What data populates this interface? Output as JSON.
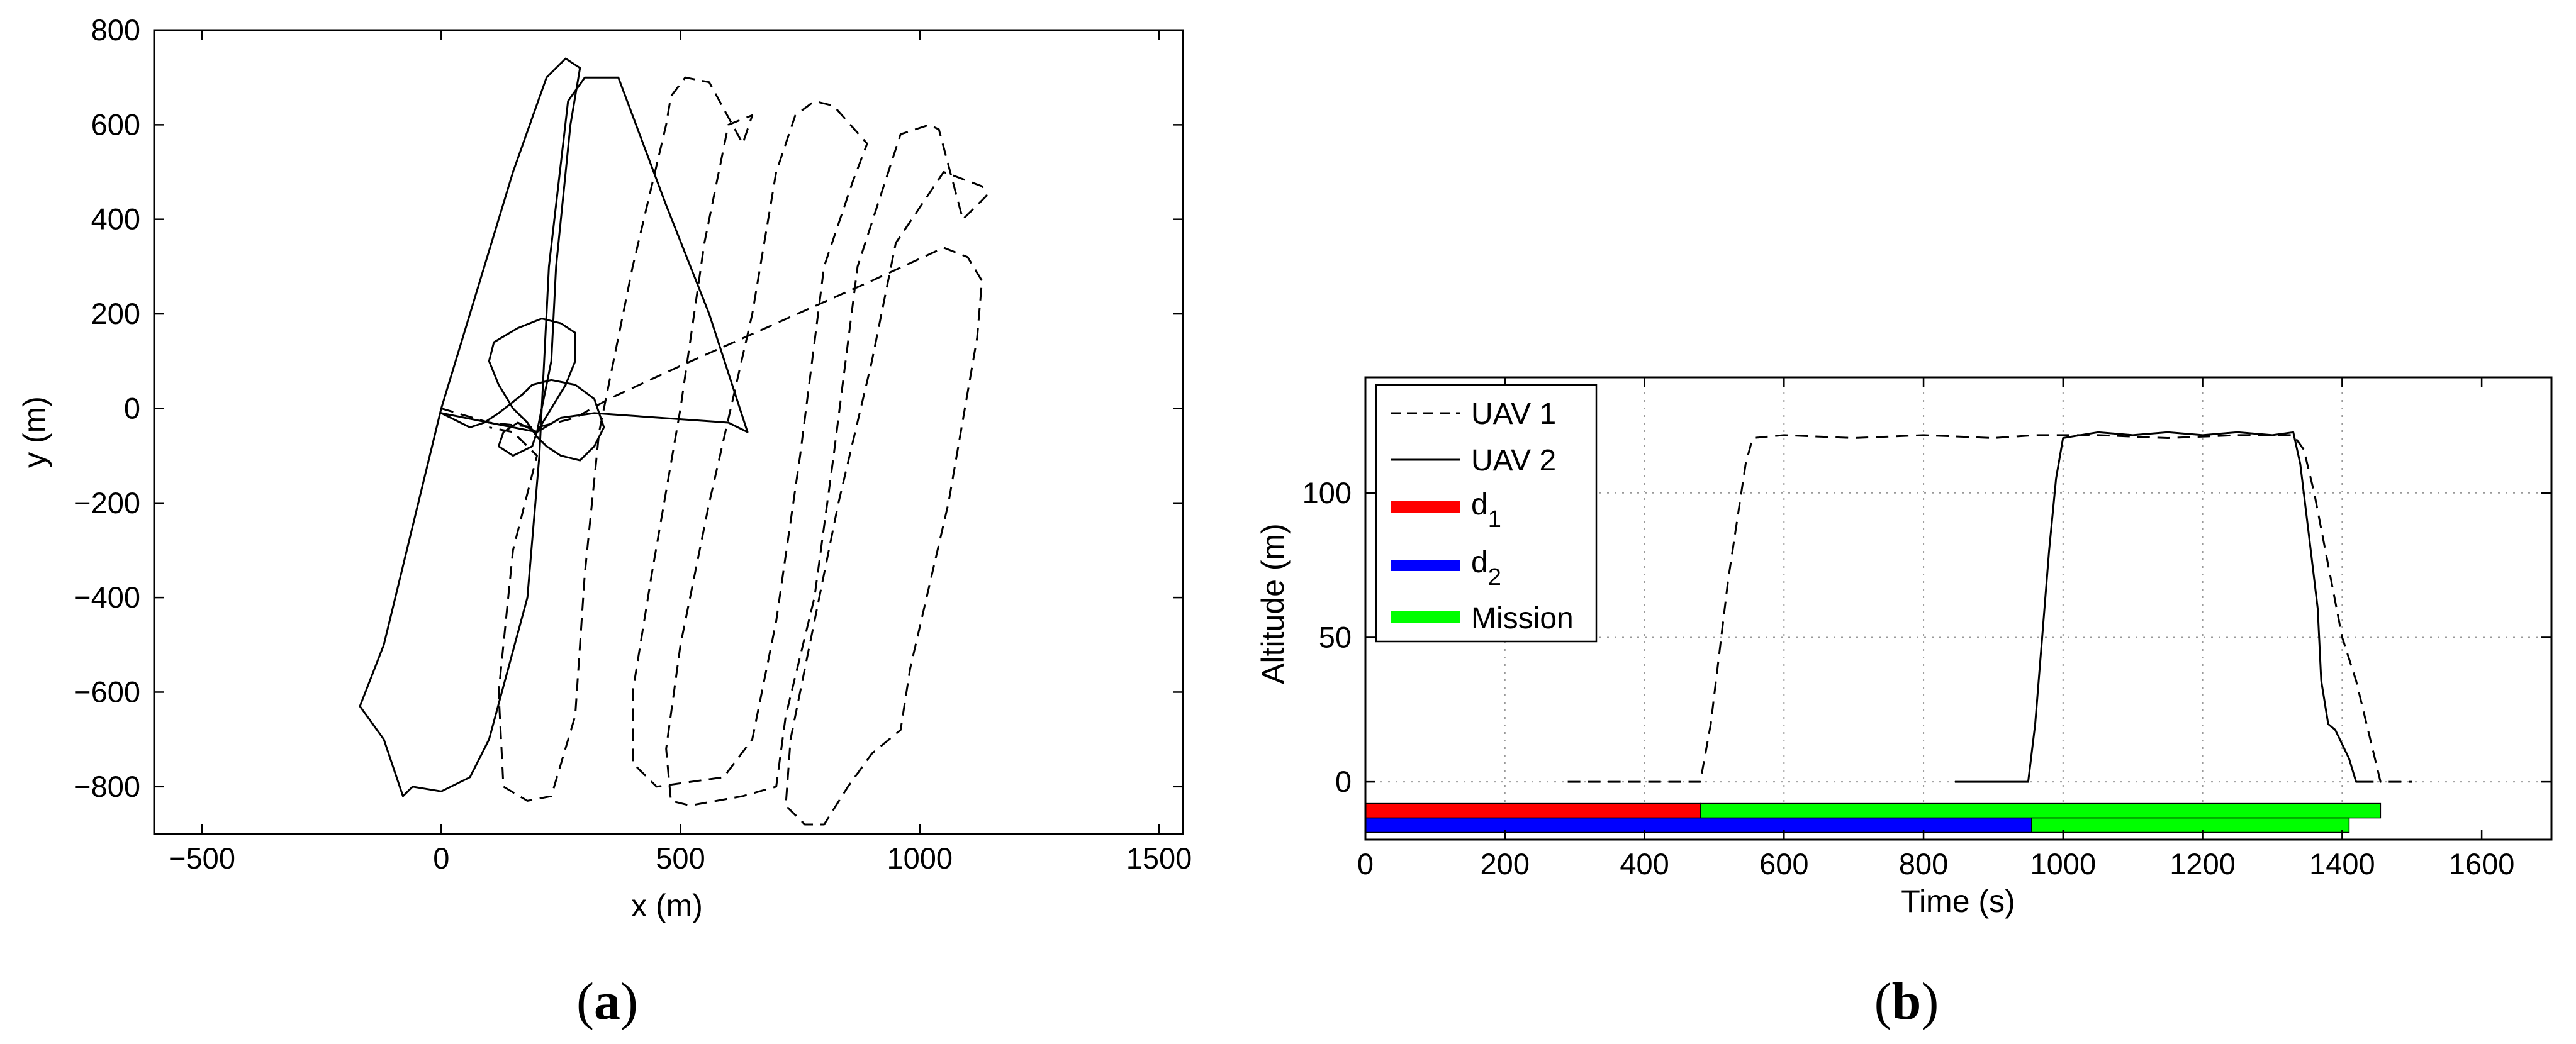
{
  "panels": [
    {
      "label_open": "(",
      "label_letter": "a",
      "label_close": ")"
    },
    {
      "label_open": "(",
      "label_letter": "b",
      "label_close": ")"
    }
  ],
  "chart_data": [
    {
      "type": "line",
      "xlabel": "x (m)",
      "ylabel": "y (m)",
      "xlim": [
        -600,
        1550
      ],
      "ylim": [
        -900,
        800
      ],
      "xticks": [
        -500,
        0,
        500,
        1000,
        1500
      ],
      "yticks": [
        -800,
        -600,
        -400,
        -200,
        0,
        200,
        400,
        600,
        800
      ],
      "xtick_labels": [
        "−500",
        "0",
        "500",
        "1000",
        "1500"
      ],
      "ytick_labels": [
        "−800",
        "−600",
        "−400",
        "−200",
        "0",
        "200",
        "400",
        "600",
        "800"
      ],
      "grid": false,
      "series": [
        {
          "style": "dashed",
          "points": [
            [
              0,
              0
            ],
            [
              100,
              -30
            ],
            [
              200,
              -40
            ],
            [
              280,
              -20
            ],
            [
              350,
              20
            ],
            [
              500,
              90
            ],
            [
              700,
              180
            ],
            [
              900,
              270
            ],
            [
              1050,
              340
            ],
            [
              1100,
              320
            ],
            [
              1130,
              270
            ],
            [
              1120,
              150
            ],
            [
              1060,
              -200
            ],
            [
              980,
              -550
            ],
            [
              960,
              -680
            ],
            [
              900,
              -730
            ],
            [
              850,
              -800
            ],
            [
              800,
              -880
            ],
            [
              760,
              -880
            ],
            [
              720,
              -840
            ],
            [
              730,
              -700
            ],
            [
              760,
              -550
            ],
            [
              830,
              -200
            ],
            [
              900,
              100
            ],
            [
              950,
              350
            ],
            [
              1050,
              500
            ],
            [
              1130,
              470
            ],
            [
              1140,
              450
            ],
            [
              1090,
              400
            ],
            [
              1040,
              590
            ],
            [
              1020,
              600
            ],
            [
              960,
              580
            ],
            [
              870,
              300
            ],
            [
              820,
              -100
            ],
            [
              780,
              -400
            ],
            [
              720,
              -650
            ],
            [
              700,
              -800
            ],
            [
              630,
              -820
            ],
            [
              520,
              -840
            ],
            [
              480,
              -830
            ],
            [
              470,
              -720
            ],
            [
              500,
              -500
            ],
            [
              560,
              -200
            ],
            [
              650,
              200
            ],
            [
              700,
              500
            ],
            [
              740,
              620
            ],
            [
              780,
              650
            ],
            [
              820,
              640
            ],
            [
              890,
              560
            ],
            [
              860,
              480
            ],
            [
              800,
              300
            ],
            [
              750,
              -100
            ],
            [
              700,
              -450
            ],
            [
              650,
              -700
            ],
            [
              590,
              -780
            ],
            [
              450,
              -800
            ],
            [
              400,
              -750
            ],
            [
              400,
              -600
            ],
            [
              440,
              -350
            ],
            [
              500,
              0
            ],
            [
              550,
              350
            ],
            [
              600,
              600
            ],
            [
              650,
              620
            ],
            [
              630,
              560
            ],
            [
              560,
              690
            ],
            [
              510,
              700
            ],
            [
              480,
              660
            ],
            [
              470,
              600
            ],
            [
              400,
              300
            ],
            [
              330,
              -50
            ],
            [
              300,
              -350
            ],
            [
              280,
              -650
            ],
            [
              230,
              -820
            ],
            [
              180,
              -830
            ],
            [
              130,
              -800
            ],
            [
              120,
              -600
            ],
            [
              150,
              -300
            ],
            [
              200,
              -100
            ],
            [
              180,
              -80
            ],
            [
              150,
              -50
            ],
            [
              100,
              -40
            ]
          ]
        },
        {
          "style": "solid",
          "points": [
            [
              200,
              -50
            ],
            [
              250,
              -20
            ],
            [
              320,
              -10
            ],
            [
              600,
              -30
            ],
            [
              640,
              -50
            ],
            [
              560,
              200
            ],
            [
              470,
              430
            ],
            [
              370,
              700
            ],
            [
              300,
              700
            ],
            [
              265,
              650
            ],
            [
              225,
              300
            ],
            [
              205,
              -100
            ],
            [
              180,
              -400
            ],
            [
              100,
              -700
            ],
            [
              60,
              -780
            ],
            [
              0,
              -810
            ],
            [
              -60,
              -800
            ],
            [
              -80,
              -820
            ],
            [
              -120,
              -700
            ],
            [
              -170,
              -630
            ],
            [
              -120,
              -500
            ],
            [
              0,
              0
            ],
            [
              150,
              500
            ],
            [
              220,
              700
            ],
            [
              260,
              740
            ],
            [
              290,
              720
            ],
            [
              270,
              600
            ],
            [
              240,
              300
            ],
            [
              230,
              100
            ],
            [
              200,
              -50
            ],
            [
              160,
              -30
            ],
            [
              130,
              -50
            ],
            [
              120,
              -80
            ],
            [
              150,
              -100
            ],
            [
              190,
              -80
            ],
            [
              200,
              -50
            ],
            [
              230,
              0
            ],
            [
              260,
              50
            ],
            [
              280,
              100
            ],
            [
              280,
              160
            ],
            [
              250,
              180
            ],
            [
              210,
              190
            ],
            [
              160,
              170
            ],
            [
              110,
              140
            ],
            [
              100,
              100
            ],
            [
              120,
              50
            ],
            [
              150,
              0
            ],
            [
              180,
              -30
            ],
            [
              200,
              -60
            ],
            [
              220,
              -80
            ],
            [
              250,
              -100
            ],
            [
              290,
              -110
            ],
            [
              320,
              -80
            ],
            [
              340,
              -40
            ],
            [
              320,
              20
            ],
            [
              280,
              50
            ],
            [
              230,
              60
            ],
            [
              190,
              50
            ],
            [
              170,
              30
            ],
            [
              120,
              -10
            ],
            [
              90,
              -30
            ],
            [
              60,
              -40
            ],
            [
              0,
              -10
            ],
            [
              200,
              -50
            ]
          ]
        }
      ]
    },
    {
      "type": "line",
      "xlabel": "Time (s)",
      "ylabel": "Altitude (m)",
      "xlim": [
        0,
        1700
      ],
      "ylim": [
        -20,
        140
      ],
      "xticks": [
        0,
        200,
        400,
        600,
        800,
        1000,
        1200,
        1400,
        1600
      ],
      "yticks": [
        0,
        50,
        100
      ],
      "xtick_labels": [
        "0",
        "200",
        "400",
        "600",
        "800",
        "1000",
        "1200",
        "1400",
        "1600"
      ],
      "ytick_labels": [
        "0",
        "50",
        "100"
      ],
      "grid": true,
      "legend": {
        "position": "top-left",
        "entries": [
          {
            "label": "UAV 1",
            "style": "dashed",
            "color": "#000000"
          },
          {
            "label": "UAV 2",
            "style": "solid",
            "color": "#000000"
          },
          {
            "label": "d",
            "sub": "1",
            "style": "bar",
            "color": "#ff0000"
          },
          {
            "label": "d",
            "sub": "2",
            "style": "bar",
            "color": "#0000ff"
          },
          {
            "label": "Mission",
            "style": "bar",
            "color": "#00ff00"
          }
        ]
      },
      "series": [
        {
          "name": "UAV 1",
          "style": "dashed",
          "points": [
            [
              290,
              0
            ],
            [
              480,
              0
            ],
            [
              495,
              20
            ],
            [
              520,
              70
            ],
            [
              545,
              110
            ],
            [
              555,
              119
            ],
            [
              600,
              120
            ],
            [
              700,
              119
            ],
            [
              800,
              120
            ],
            [
              900,
              119
            ],
            [
              960,
              120
            ],
            [
              1050,
              120
            ],
            [
              1150,
              119
            ],
            [
              1250,
              120
            ],
            [
              1330,
              120
            ],
            [
              1345,
              115
            ],
            [
              1360,
              100
            ],
            [
              1380,
              75
            ],
            [
              1400,
              50
            ],
            [
              1420,
              35
            ],
            [
              1435,
              20
            ],
            [
              1450,
              5
            ],
            [
              1455,
              0
            ],
            [
              1500,
              0
            ]
          ]
        },
        {
          "name": "UAV 2",
          "style": "solid",
          "points": [
            [
              845,
              0
            ],
            [
              950,
              0
            ],
            [
              960,
              20
            ],
            [
              970,
              50
            ],
            [
              980,
              80
            ],
            [
              990,
              105
            ],
            [
              1000,
              119
            ],
            [
              1050,
              121
            ],
            [
              1100,
              120
            ],
            [
              1150,
              121
            ],
            [
              1200,
              120
            ],
            [
              1250,
              121
            ],
            [
              1300,
              120
            ],
            [
              1330,
              121
            ],
            [
              1340,
              110
            ],
            [
              1355,
              80
            ],
            [
              1365,
              60
            ],
            [
              1370,
              35
            ],
            [
              1380,
              20
            ],
            [
              1390,
              18
            ],
            [
              1400,
              13
            ],
            [
              1410,
              8
            ],
            [
              1420,
              0
            ],
            [
              1445,
              0
            ]
          ]
        }
      ],
      "bars": [
        {
          "name": "d1",
          "row": 1,
          "start": 0,
          "end": 480,
          "color": "#ff0000"
        },
        {
          "name": "Mission",
          "row": 1,
          "start": 480,
          "end": 1455,
          "color": "#00ff00"
        },
        {
          "name": "d2",
          "row": 2,
          "start": 0,
          "end": 955,
          "color": "#0000ff"
        },
        {
          "name": "Mission",
          "row": 2,
          "start": 955,
          "end": 1410,
          "color": "#00ff00"
        }
      ]
    }
  ]
}
